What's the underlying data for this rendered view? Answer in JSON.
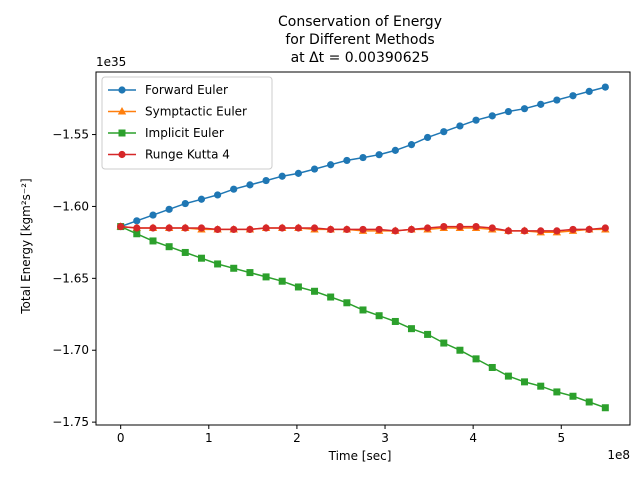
{
  "chart_data": {
    "type": "line",
    "title_lines": [
      "Conservation of Energy",
      "for Different Methods",
      "at Δt = 0.00390625"
    ],
    "xlabel": "Time [sec]",
    "ylabel": "Total Energy [kgm²s⁻²]",
    "x_offset_label": "1e8",
    "y_offset_label": "1e35",
    "xlim": [
      -0.28,
      5.78
    ],
    "ylim": [
      -1.752,
      -1.5065
    ],
    "xticks": [
      0,
      1,
      2,
      3,
      4,
      5
    ],
    "xtick_labels": [
      "0",
      "1",
      "2",
      "3",
      "4",
      "5"
    ],
    "yticks": [
      -1.55,
      -1.6,
      -1.65,
      -1.7,
      -1.75
    ],
    "ytick_labels": [
      "−1.55",
      "−1.60",
      "−1.65",
      "−1.70",
      "−1.75"
    ],
    "legend_position": "upper-left",
    "x": [
      0.0,
      0.183,
      0.367,
      0.55,
      0.733,
      0.917,
      1.1,
      1.283,
      1.467,
      1.65,
      1.833,
      2.017,
      2.2,
      2.383,
      2.567,
      2.75,
      2.933,
      3.117,
      3.3,
      3.483,
      3.667,
      3.85,
      4.033,
      4.217,
      4.4,
      4.583,
      4.767,
      4.95,
      5.133,
      5.317,
      5.5
    ],
    "series": [
      {
        "name": "Forward Euler",
        "color": "#1f77b4",
        "marker": "circle",
        "values": [
          -1.614,
          -1.61,
          -1.606,
          -1.602,
          -1.598,
          -1.595,
          -1.592,
          -1.588,
          -1.585,
          -1.582,
          -1.579,
          -1.577,
          -1.574,
          -1.571,
          -1.568,
          -1.566,
          -1.564,
          -1.561,
          -1.557,
          -1.552,
          -1.548,
          -1.544,
          -1.54,
          -1.537,
          -1.534,
          -1.532,
          -1.529,
          -1.526,
          -1.523,
          -1.52,
          -1.517
        ]
      },
      {
        "name": "Symptactic Euler",
        "color": "#ff7f0e",
        "marker": "triangle",
        "values": [
          -1.614,
          -1.615,
          -1.615,
          -1.615,
          -1.615,
          -1.616,
          -1.616,
          -1.616,
          -1.616,
          -1.615,
          -1.615,
          -1.615,
          -1.616,
          -1.616,
          -1.616,
          -1.617,
          -1.617,
          -1.617,
          -1.616,
          -1.616,
          -1.615,
          -1.615,
          -1.615,
          -1.616,
          -1.617,
          -1.617,
          -1.618,
          -1.618,
          -1.617,
          -1.616,
          -1.616
        ]
      },
      {
        "name": "Implicit Euler",
        "color": "#2ca02c",
        "marker": "square",
        "values": [
          -1.614,
          -1.619,
          -1.624,
          -1.628,
          -1.632,
          -1.636,
          -1.64,
          -1.643,
          -1.646,
          -1.649,
          -1.652,
          -1.656,
          -1.659,
          -1.663,
          -1.667,
          -1.672,
          -1.676,
          -1.68,
          -1.685,
          -1.689,
          -1.695,
          -1.7,
          -1.706,
          -1.712,
          -1.718,
          -1.722,
          -1.725,
          -1.729,
          -1.732,
          -1.736,
          -1.74
        ]
      },
      {
        "name": "Runge Kutta 4",
        "color": "#d62728",
        "marker": "circle",
        "values": [
          -1.614,
          -1.615,
          -1.615,
          -1.615,
          -1.615,
          -1.615,
          -1.616,
          -1.616,
          -1.616,
          -1.615,
          -1.615,
          -1.615,
          -1.615,
          -1.616,
          -1.616,
          -1.616,
          -1.616,
          -1.617,
          -1.616,
          -1.615,
          -1.614,
          -1.614,
          -1.614,
          -1.615,
          -1.617,
          -1.617,
          -1.617,
          -1.617,
          -1.616,
          -1.616,
          -1.615
        ]
      }
    ]
  }
}
